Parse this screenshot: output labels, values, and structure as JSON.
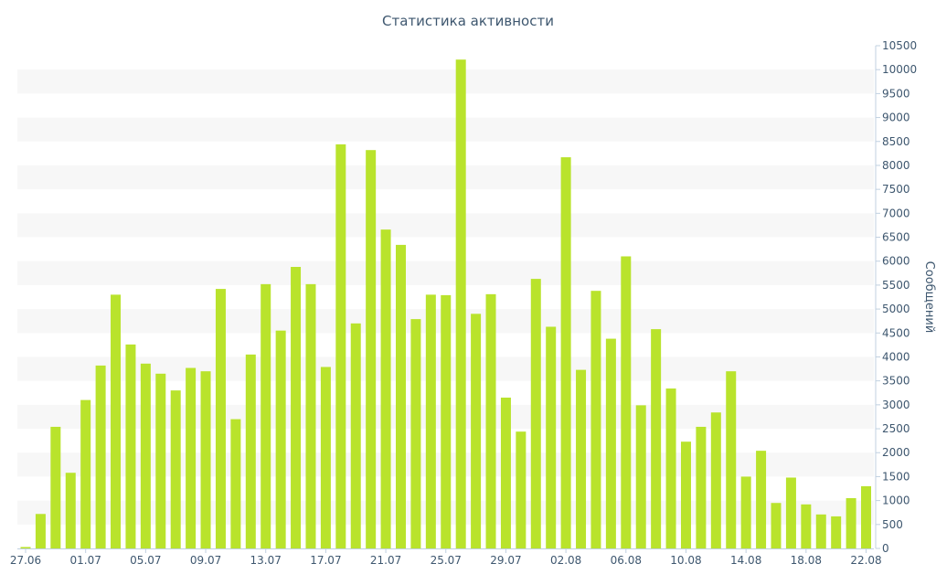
{
  "chart_data": {
    "type": "bar",
    "title": "Статистика активности",
    "xlabel": "",
    "ylabel": "Сообщений",
    "ylim": [
      0,
      10500
    ],
    "y_ticks": [
      0,
      500,
      1000,
      1500,
      2000,
      2500,
      3000,
      3500,
      4000,
      4500,
      5000,
      5500,
      6000,
      6500,
      7000,
      7500,
      8000,
      8500,
      9000,
      9500,
      10000,
      10500
    ],
    "y_axis_side": "right",
    "grid": "alternating horizontal bands",
    "bar_color": "#b9e32c",
    "band_color": "#f7f7f7",
    "text_color": "#3e576f",
    "categories": [
      "27.06",
      "28.06",
      "29.06",
      "30.06",
      "01.07",
      "02.07",
      "03.07",
      "04.07",
      "05.07",
      "06.07",
      "07.07",
      "08.07",
      "09.07",
      "10.07",
      "11.07",
      "12.07",
      "13.07",
      "14.07",
      "15.07",
      "16.07",
      "17.07",
      "18.07",
      "19.07",
      "20.07",
      "21.07",
      "22.07",
      "23.07",
      "24.07",
      "25.07",
      "26.07",
      "27.07",
      "28.07",
      "29.07",
      "30.07",
      "31.07",
      "01.08",
      "02.08",
      "03.08",
      "04.08",
      "05.08",
      "06.08",
      "07.08",
      "08.08",
      "09.08",
      "10.08",
      "11.08",
      "12.08",
      "13.08",
      "14.08",
      "15.08",
      "16.08",
      "17.08",
      "18.08",
      "19.08",
      "20.08",
      "21.08",
      "22.08",
      "23.08"
    ],
    "x_tick_labels": [
      "27.06",
      "01.07",
      "05.07",
      "09.07",
      "13.07",
      "17.07",
      "21.07",
      "25.07",
      "29.07",
      "02.08",
      "06.08",
      "10.08",
      "14.08",
      "18.08",
      "22.08"
    ],
    "values": [
      30,
      720,
      2540,
      1580,
      3100,
      3820,
      5300,
      4260,
      3860,
      3650,
      3300,
      3770,
      3700,
      5420,
      2700,
      4050,
      5520,
      4550,
      5880,
      5520,
      3790,
      8440,
      4700,
      8320,
      6660,
      6340,
      4790,
      5300,
      5290,
      10210,
      4900,
      5310,
      3150,
      2440,
      5630,
      4630,
      8170,
      3730,
      5380,
      4380,
      6100,
      2990,
      4580,
      3340,
      2230,
      2540,
      2840,
      3700,
      1500,
      2040,
      950,
      1480,
      920,
      710,
      670,
      1050,
      1300,
      0
    ]
  }
}
